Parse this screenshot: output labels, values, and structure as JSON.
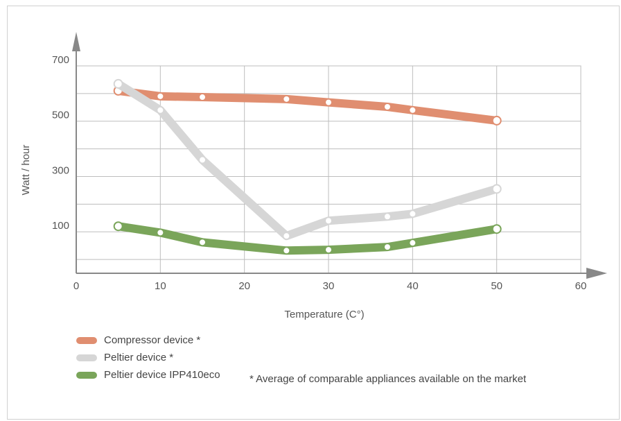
{
  "chart_data": {
    "type": "line",
    "xlabel": "Temperature (C°)",
    "ylabel": "Watt / hour",
    "xlim": [
      0,
      60
    ],
    "ylim": [
      -50,
      700
    ],
    "x_ticks": [
      "0",
      "10",
      "20",
      "30",
      "40",
      "50",
      "60"
    ],
    "y_ticks": [
      "100",
      "300",
      "500",
      "700"
    ],
    "grid": true,
    "legend_position": "bottom-left",
    "series": [
      {
        "name": "Compressor device *",
        "color": "#e08e70",
        "x": [
          5,
          10,
          15,
          25,
          30,
          37,
          40,
          50
        ],
        "y": [
          610,
          590,
          587,
          580,
          568,
          552,
          540,
          502
        ]
      },
      {
        "name": "Peltier device *",
        "color": "#d6d6d6",
        "x": [
          5,
          10,
          15,
          25,
          30,
          37,
          40,
          50
        ],
        "y": [
          635,
          540,
          360,
          85,
          140,
          155,
          165,
          255
        ]
      },
      {
        "name": "Peltier device IPP410eco",
        "color": "#7aa55a",
        "x": [
          5,
          10,
          15,
          25,
          30,
          37,
          40,
          50
        ],
        "y": [
          120,
          97,
          62,
          32,
          35,
          45,
          60,
          110
        ]
      }
    ],
    "footnote": "* Average of comparable appliances available on the market"
  }
}
